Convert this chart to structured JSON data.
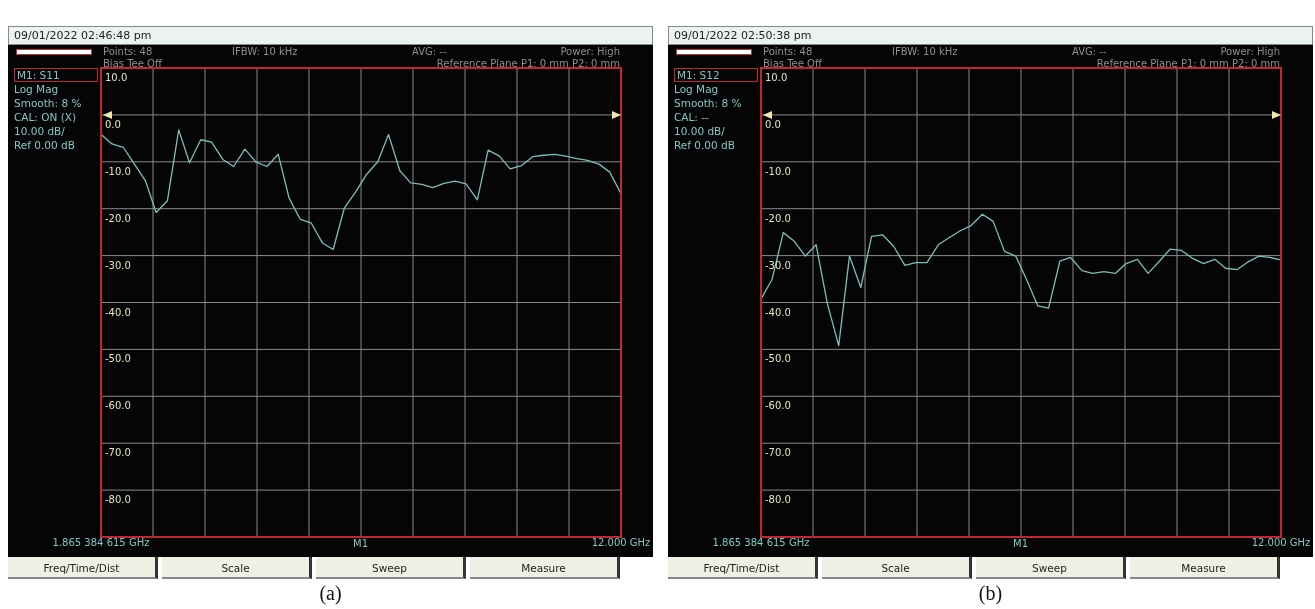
{
  "chart_data": [
    {
      "type": "line",
      "title": "(a)",
      "subtitle": "09/01/2022 02:46:48 pm",
      "x": [
        1.87,
        2.08,
        2.3,
        2.51,
        2.73,
        2.94,
        3.16,
        3.38,
        3.59,
        3.81,
        4.02,
        4.24,
        4.45,
        4.67,
        4.88,
        5.1,
        5.32,
        5.53,
        5.75,
        5.96,
        6.18,
        6.39,
        6.61,
        6.83,
        7.04,
        7.26,
        7.47,
        7.69,
        7.9,
        8.12,
        8.33,
        8.55,
        8.77,
        8.98,
        9.2,
        9.41,
        9.63,
        9.84,
        10.06,
        10.28,
        10.49,
        10.71,
        10.92,
        11.14,
        11.35,
        11.57,
        11.78,
        12.0
      ],
      "series": [
        {
          "color": "#7dbdb8",
          "values": [
            -4.2,
            -6.2,
            -6.9,
            -10.4,
            -14.0,
            -20.8,
            -18.3,
            -3.2,
            -10.2,
            -5.3,
            -5.8,
            -9.5,
            -11.0,
            -7.3,
            -10.0,
            -11.0,
            -8.4,
            -17.7,
            -22.3,
            -23.0,
            -27.3,
            -28.7,
            -19.8,
            -16.4,
            -12.7,
            -10.0,
            -4.2,
            -11.9,
            -14.5,
            -14.8,
            -15.5,
            -14.6,
            -14.1,
            -14.7,
            -18.1,
            -7.5,
            -8.8,
            -11.5,
            -10.8,
            -8.9,
            -8.6,
            -8.4,
            -8.8,
            -9.3,
            -9.7,
            -10.5,
            -12.2,
            -16.8
          ]
        }
      ],
      "xlim": [
        1.865384615,
        12
      ],
      "xticks": [
        {
          "value": 1.865384615,
          "label": "1.865 384 615 GHz"
        },
        {
          "value": 2.879,
          "label": null
        },
        {
          "value": 3.893,
          "label": null
        },
        {
          "value": 4.906,
          "label": null
        },
        {
          "value": 5.919,
          "label": null
        },
        {
          "value": 6.933,
          "label": null
        },
        {
          "value": 7.946,
          "label": null
        },
        {
          "value": 8.96,
          "label": null
        },
        {
          "value": 9.973,
          "label": null
        },
        {
          "value": 10.987,
          "label": null
        },
        {
          "value": 12,
          "label": "12.000 GHz"
        }
      ],
      "ylim": [
        -90,
        10
      ],
      "yticks": [
        {
          "value": 10,
          "label": "10.0"
        },
        {
          "value": 0,
          "label": "0.0"
        },
        {
          "value": -10,
          "label": "-10.0"
        },
        {
          "value": -20,
          "label": "-20.0"
        },
        {
          "value": -30,
          "label": "-30.0"
        },
        {
          "value": -40,
          "label": "-40.0"
        },
        {
          "value": -50,
          "label": "-50.0"
        },
        {
          "value": -60,
          "label": "-60.0"
        },
        {
          "value": -70,
          "label": "-70.0"
        },
        {
          "value": -80,
          "label": "-80.0"
        }
      ],
      "grid": true,
      "line_style": "solid",
      "annotations": [
        "Points: 48",
        "IFBW: 10 kHz",
        "AVG: --",
        "Power: High",
        "Bias Tee Off",
        "Reference Plane P1: 0 mm P2: 0 mm",
        "M1: S11",
        "Log Mag",
        "Smooth: 8 %",
        "CAL: ON (X)",
        "10.00 dB/",
        "Ref 0.00 dB",
        "M1",
        "Freq/Time/Dist",
        "Scale",
        "Sweep",
        "Measure"
      ]
    },
    {
      "type": "line",
      "title": "(b)",
      "subtitle": "09/01/2022 02:50:38 pm",
      "x": [
        1.87,
        2.08,
        2.3,
        2.51,
        2.73,
        2.94,
        3.16,
        3.38,
        3.59,
        3.81,
        4.02,
        4.24,
        4.45,
        4.67,
        4.88,
        5.1,
        5.32,
        5.53,
        5.75,
        5.96,
        6.18,
        6.39,
        6.61,
        6.83,
        7.04,
        7.26,
        7.47,
        7.69,
        7.9,
        8.12,
        8.33,
        8.55,
        8.77,
        8.98,
        9.2,
        9.41,
        9.63,
        9.84,
        10.06,
        10.28,
        10.49,
        10.71,
        10.92,
        11.14,
        11.35,
        11.57,
        11.78,
        12.0
      ],
      "series": [
        {
          "color": "#7dbdb8",
          "values": [
            -39.2,
            -35.1,
            -25.1,
            -26.9,
            -30.1,
            -27.7,
            -40.3,
            -49.2,
            -30.1,
            -36.8,
            -25.9,
            -25.6,
            -28.0,
            -32.1,
            -31.5,
            -31.5,
            -27.7,
            -26.2,
            -24.7,
            -23.6,
            -21.2,
            -22.7,
            -29.1,
            -30.1,
            -35.1,
            -40.7,
            -41.2,
            -31.2,
            -30.4,
            -33.2,
            -33.8,
            -33.4,
            -33.8,
            -31.7,
            -30.8,
            -33.8,
            -31.2,
            -28.6,
            -28.9,
            -30.6,
            -31.7,
            -30.8,
            -32.7,
            -33.0,
            -31.4,
            -30.1,
            -30.4,
            -30.9
          ]
        }
      ],
      "xlim": [
        1.865384615,
        12
      ],
      "xticks": [
        {
          "value": 1.865384615,
          "label": "1.865 384 615 GHz"
        },
        {
          "value": 2.879,
          "label": null
        },
        {
          "value": 3.893,
          "label": null
        },
        {
          "value": 4.906,
          "label": null
        },
        {
          "value": 5.919,
          "label": null
        },
        {
          "value": 6.933,
          "label": null
        },
        {
          "value": 7.946,
          "label": null
        },
        {
          "value": 8.96,
          "label": null
        },
        {
          "value": 9.973,
          "label": null
        },
        {
          "value": 10.987,
          "label": null
        },
        {
          "value": 12,
          "label": "12.000 GHz"
        }
      ],
      "ylim": [
        -90,
        10
      ],
      "yticks": [
        {
          "value": 10,
          "label": "10.0"
        },
        {
          "value": 0,
          "label": "0.0"
        },
        {
          "value": -10,
          "label": "-10.0"
        },
        {
          "value": -20,
          "label": "-20.0"
        },
        {
          "value": -30,
          "label": "-30.0"
        },
        {
          "value": -40,
          "label": "-40.0"
        },
        {
          "value": -50,
          "label": "-50.0"
        },
        {
          "value": -60,
          "label": "-60.0"
        },
        {
          "value": -70,
          "label": "-70.0"
        },
        {
          "value": -80,
          "label": "-80.0"
        }
      ],
      "grid": true,
      "line_style": "solid",
      "annotations": [
        "Points: 48",
        "IFBW: 10 kHz",
        "AVG: --",
        "Power: High",
        "Bias Tee Off",
        "Reference Plane P1: 0 mm P2: 0 mm",
        "M1: S12",
        "Log Mag",
        "Smooth: 8 %",
        "CAL: --",
        "10.00 dB/",
        "Ref 0.00 dB",
        "M1",
        "Freq/Time/Dist",
        "Scale",
        "Sweep",
        "Measure"
      ]
    }
  ]
}
